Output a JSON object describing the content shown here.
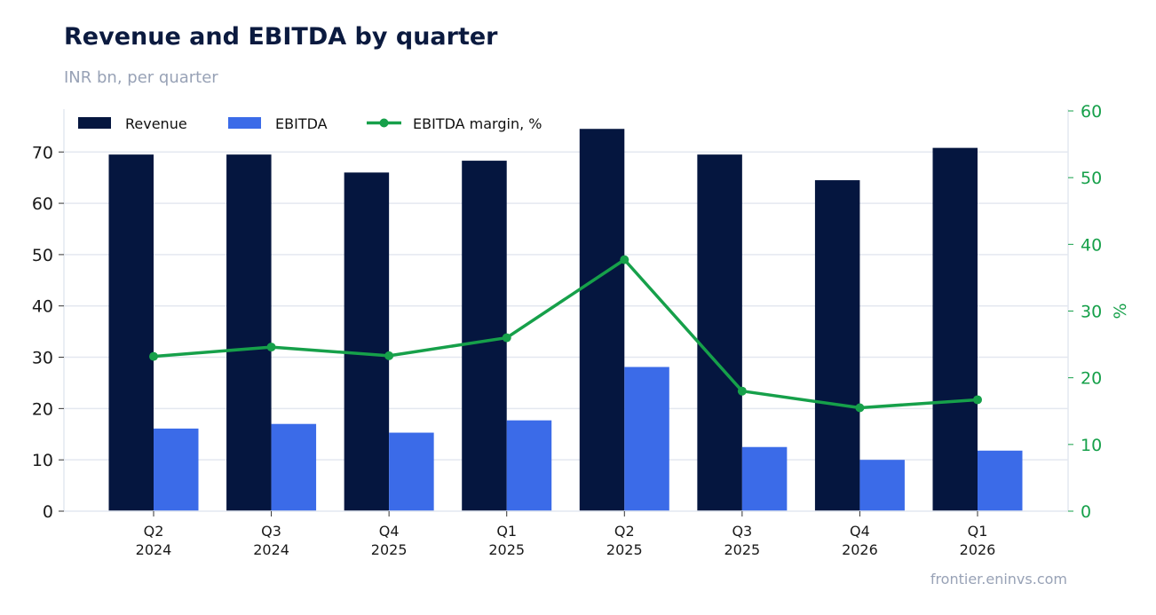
{
  "header": {
    "title": "Revenue and EBITDA by quarter",
    "subtitle": "INR bn, per quarter"
  },
  "footer": {
    "source": "frontier.eninvs.com"
  },
  "colors": {
    "revenue": "#05163f",
    "ebitda": "#3b6be8",
    "margin": "#16a04a",
    "grid": "#e4e8f0",
    "axis_text": "#1a1a1a"
  },
  "chart_data": {
    "type": "bar",
    "categories": [
      [
        "Q2",
        "2024"
      ],
      [
        "Q3",
        "2024"
      ],
      [
        "Q4",
        "2025"
      ],
      [
        "Q1",
        "2025"
      ],
      [
        "Q2",
        "2025"
      ],
      [
        "Q3",
        "2025"
      ],
      [
        "Q4",
        "2026"
      ],
      [
        "Q1",
        "2026"
      ]
    ],
    "series": [
      {
        "name": "Revenue",
        "type": "bar",
        "axis": "left",
        "values": [
          69.5,
          69.5,
          66.0,
          68.3,
          74.5,
          69.5,
          64.5,
          70.8
        ]
      },
      {
        "name": "EBITDA",
        "type": "bar",
        "axis": "left",
        "values": [
          16.1,
          17.0,
          15.3,
          17.7,
          28.1,
          12.5,
          10.0,
          11.8
        ]
      },
      {
        "name": "EBITDA margin, %",
        "type": "line",
        "axis": "right",
        "values": [
          23.2,
          24.6,
          23.3,
          26.0,
          37.7,
          18.0,
          15.5,
          16.7
        ]
      }
    ],
    "y_left": {
      "lim": [
        0,
        78
      ],
      "ticks": [
        0,
        10,
        20,
        30,
        40,
        50,
        60,
        70
      ],
      "label": ""
    },
    "y_right": {
      "lim": [
        0,
        60
      ],
      "ticks": [
        0,
        10,
        20,
        30,
        40,
        50,
        60
      ],
      "label": "%"
    },
    "grid": true,
    "legend": "top-left"
  }
}
